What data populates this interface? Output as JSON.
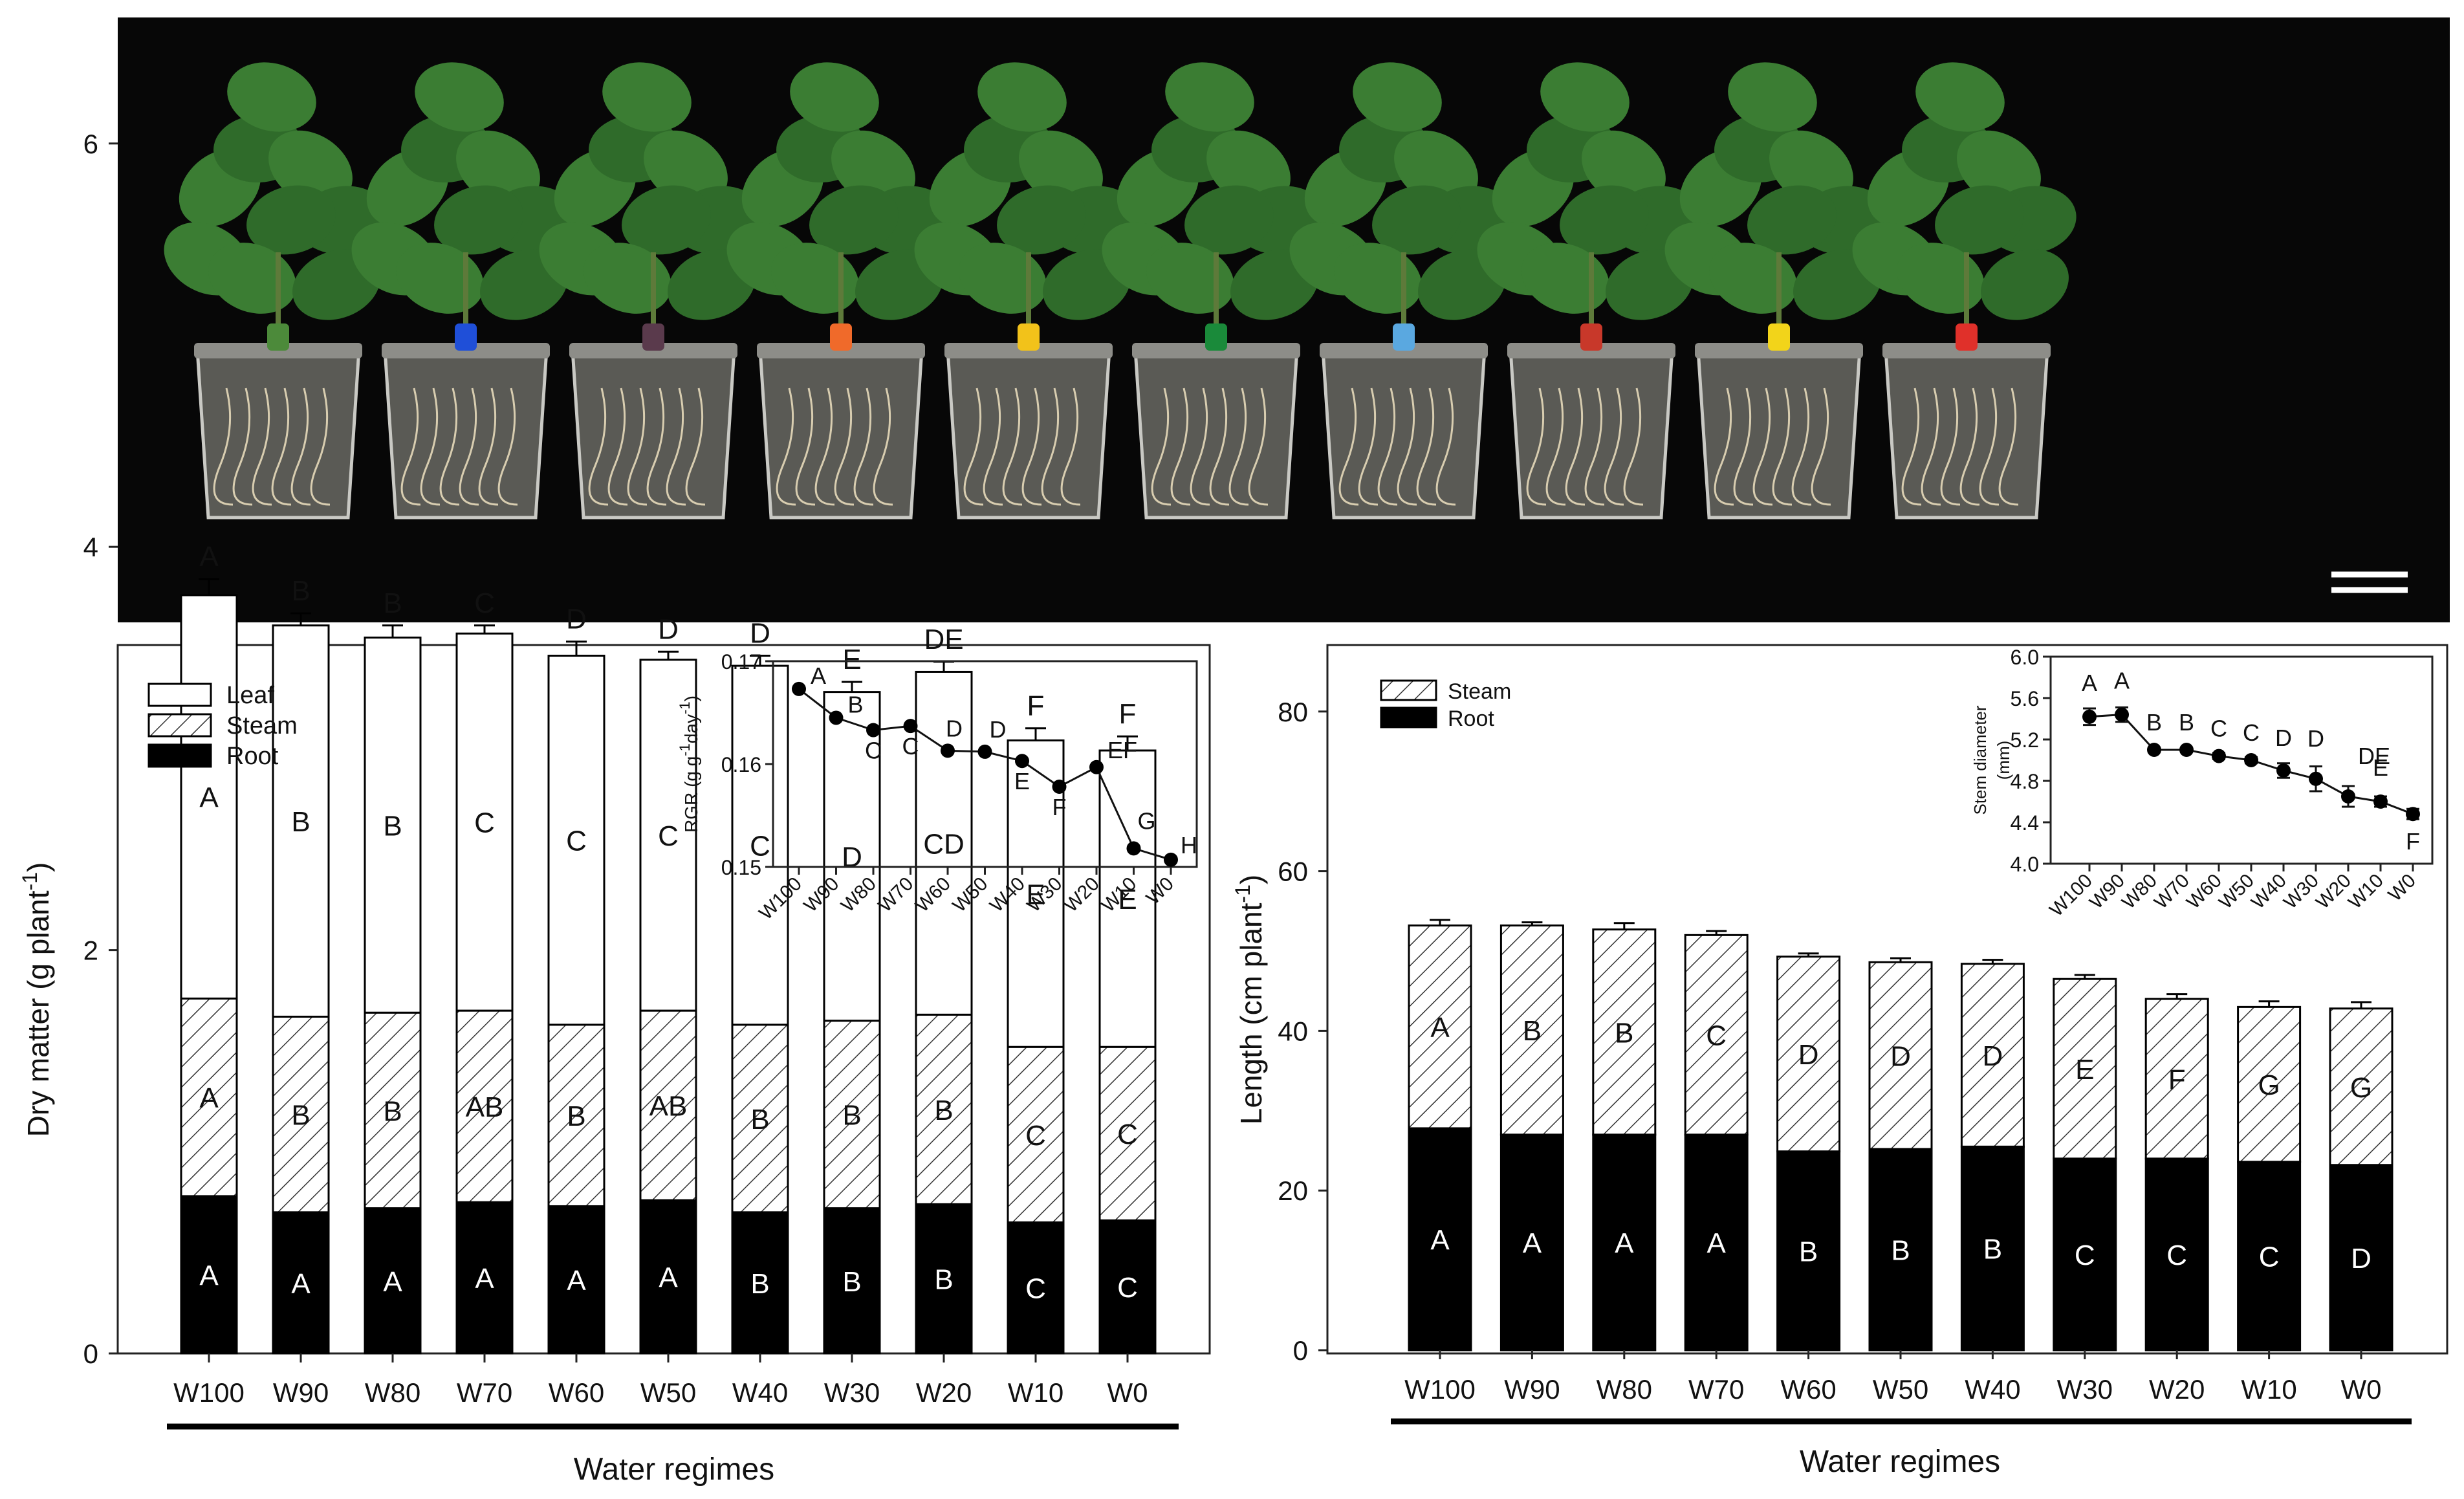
{
  "photo": {
    "pot_tag_colors": [
      "#4c8a3a",
      "#1f4fd8",
      "#5a3a4c",
      "#f06a2a",
      "#f2c21a",
      "#1a8a3a",
      "#5aa8e0",
      "#c8382a",
      "#f2d41a",
      "#e0302a"
    ],
    "scale_bar": "scale bar"
  },
  "chart_data": [
    {
      "type": "bar",
      "stacked": true,
      "categories": [
        "W100",
        "W90",
        "W80",
        "W70",
        "W60",
        "W50",
        "W40",
        "W30",
        "W20",
        "W10",
        "W0"
      ],
      "series": [
        {
          "name": "Root",
          "values": [
            0.78,
            0.7,
            0.72,
            0.75,
            0.73,
            0.76,
            0.7,
            0.72,
            0.74,
            0.65,
            0.66
          ],
          "errors": [
            0.05,
            0.04,
            0.04,
            0.04,
            0.04,
            0.04,
            0.04,
            0.04,
            0.04,
            0.04,
            0.04
          ],
          "letters": [
            "A",
            "A",
            "A",
            "A",
            "A",
            "A",
            "B",
            "B",
            "B",
            "C",
            "C"
          ]
        },
        {
          "name": "Steam",
          "values": [
            0.98,
            0.97,
            0.97,
            0.95,
            0.9,
            0.94,
            0.93,
            0.93,
            0.94,
            0.87,
            0.86
          ],
          "errors": [
            0.04,
            0.03,
            0.04,
            0.03,
            0.03,
            0.03,
            0.03,
            0.04,
            0.04,
            0.05,
            0.05
          ],
          "letters": [
            "A",
            "B",
            "B",
            "AB",
            "B",
            "AB",
            "B",
            "B",
            "B",
            "C",
            "C"
          ]
        },
        {
          "name": "Leaf",
          "values": [
            2.0,
            1.94,
            1.86,
            1.87,
            1.83,
            1.74,
            1.78,
            1.63,
            1.7,
            1.52,
            1.47
          ],
          "errors": [
            0.08,
            0.06,
            0.06,
            0.04,
            0.07,
            0.04,
            0.05,
            0.05,
            0.05,
            0.06,
            0.07
          ],
          "letters": [
            "A",
            "B",
            "B",
            "C",
            "C",
            "C",
            "C",
            "D",
            "CD",
            "E",
            "E"
          ]
        }
      ],
      "total_letters": [
        "A",
        "B",
        "B",
        "C",
        "D",
        "D",
        "D",
        "E",
        "DE",
        "F",
        "F"
      ],
      "ylabel": "Dry matter (g plant",
      "ylabel_sup": "-1",
      "ylabel_end": ")",
      "xlabel": "Water regimes",
      "ylim": [
        0,
        7
      ],
      "yticks": [
        0,
        2,
        4,
        6
      ],
      "legend": [
        "Leaf",
        "Steam",
        "Root"
      ],
      "inset": {
        "type": "line",
        "x": [
          "W100",
          "W90",
          "W80",
          "W70",
          "W60",
          "W50",
          "W40",
          "W30",
          "W20",
          "W10",
          "W0"
        ],
        "y": [
          0.1673,
          0.1645,
          0.1633,
          0.1637,
          0.1613,
          0.1612,
          0.1603,
          0.1578,
          0.1597,
          0.1518,
          0.1507
        ],
        "letters": [
          "A",
          "B",
          "C",
          "C",
          "D",
          "D",
          "E",
          "F",
          "EF",
          "G",
          "H"
        ],
        "ylim": [
          0.15,
          0.17
        ],
        "yticks": [
          "0.15",
          "0.16",
          "0.17"
        ],
        "ylabel_parts": [
          "RGR (g g",
          "-1",
          "day",
          "-1",
          ")"
        ]
      }
    },
    {
      "type": "bar",
      "stacked": true,
      "categories": [
        "W100",
        "W90",
        "W80",
        "W70",
        "W60",
        "W50",
        "W40",
        "W30",
        "W20",
        "W10",
        "W0"
      ],
      "series": [
        {
          "name": "Root",
          "values": [
            27.8,
            27.0,
            27.0,
            27.0,
            24.9,
            25.2,
            25.5,
            24.0,
            24.0,
            23.6,
            23.2
          ],
          "errors": [
            0.6,
            1.2,
            0.7,
            0.6,
            0.4,
            0.6,
            0.7,
            0.5,
            0.8,
            0.8,
            0.5
          ],
          "letters": [
            "A",
            "A",
            "A",
            "A",
            "B",
            "B",
            "B",
            "C",
            "C",
            "C",
            "D"
          ]
        },
        {
          "name": "Steam",
          "values": [
            25.4,
            26.2,
            25.7,
            25.0,
            24.4,
            23.4,
            22.9,
            22.5,
            20.0,
            19.4,
            19.6
          ],
          "errors": [
            0.7,
            0.4,
            0.8,
            0.5,
            0.4,
            0.5,
            0.5,
            0.5,
            0.6,
            0.7,
            0.8
          ],
          "letters": [
            "A",
            "B",
            "B",
            "C",
            "D",
            "D",
            "D",
            "E",
            "F",
            "G",
            "G"
          ]
        }
      ],
      "ylabel": "Length (cm plant",
      "ylabel_sup": "-1",
      "ylabel_end": ")",
      "xlabel": "Water regimes",
      "ylim": [
        0,
        88
      ],
      "yticks": [
        0,
        20,
        40,
        60,
        80
      ],
      "legend": [
        "Steam",
        "Root"
      ],
      "inset": {
        "type": "line",
        "x": [
          "W100",
          "W90",
          "W80",
          "W70",
          "W60",
          "W50",
          "W40",
          "W30",
          "W20",
          "W10",
          "W0"
        ],
        "y": [
          5.42,
          5.44,
          5.1,
          5.1,
          5.04,
          5.0,
          4.9,
          4.82,
          4.65,
          4.6,
          4.48
        ],
        "errors": [
          0.08,
          0.07,
          0.02,
          0.02,
          0.03,
          0.03,
          0.07,
          0.12,
          0.1,
          0.05,
          0.05
        ],
        "letters": [
          "A",
          "A",
          "B",
          "B",
          "C",
          "C",
          "D",
          "D",
          "DE",
          "E",
          "F"
        ],
        "ylim": [
          4.0,
          6.0
        ],
        "yticks": [
          "4.0",
          "4.4",
          "4.8",
          "5.2",
          "5.6",
          "6.0"
        ],
        "ylabel_parts": [
          "Stem diameter",
          "(mm)"
        ]
      }
    }
  ]
}
